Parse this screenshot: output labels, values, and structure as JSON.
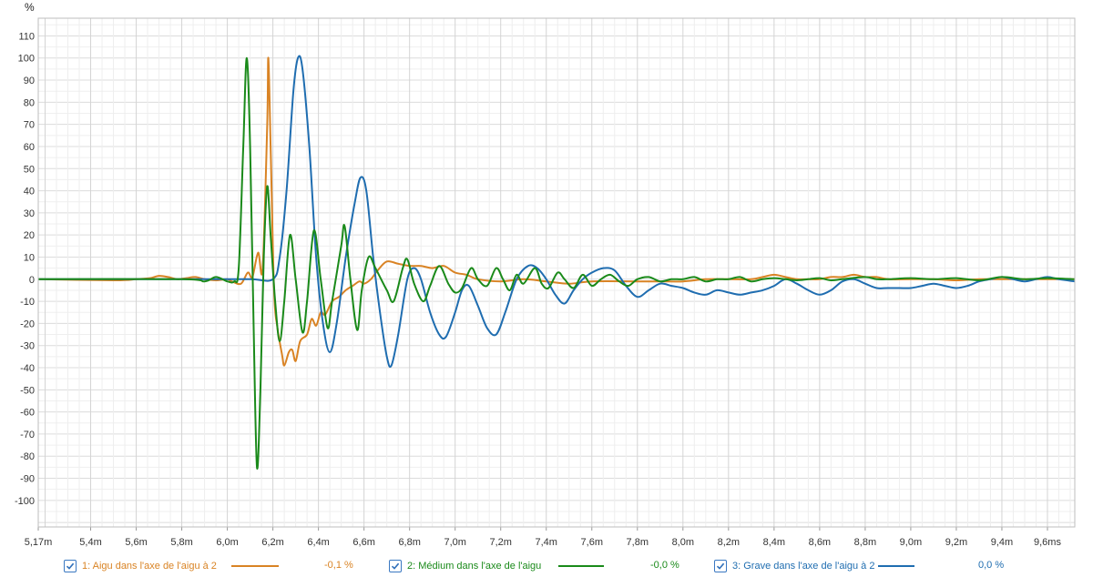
{
  "chart_data": {
    "type": "line",
    "ylabel": "%",
    "xlabel": "",
    "xlim": [
      5.17,
      9.72
    ],
    "ylim": [
      -112,
      118
    ],
    "grid": true,
    "x_ticks": [
      {
        "v": 5.17,
        "label": "5,17m"
      },
      {
        "v": 5.4,
        "label": "5,4m"
      },
      {
        "v": 5.6,
        "label": "5,6m"
      },
      {
        "v": 5.8,
        "label": "5,8m"
      },
      {
        "v": 6.0,
        "label": "6,0m"
      },
      {
        "v": 6.2,
        "label": "6,2m"
      },
      {
        "v": 6.4,
        "label": "6,4m"
      },
      {
        "v": 6.6,
        "label": "6,6m"
      },
      {
        "v": 6.8,
        "label": "6,8m"
      },
      {
        "v": 7.0,
        "label": "7,0m"
      },
      {
        "v": 7.2,
        "label": "7,2m"
      },
      {
        "v": 7.4,
        "label": "7,4m"
      },
      {
        "v": 7.6,
        "label": "7,6m"
      },
      {
        "v": 7.8,
        "label": "7,8m"
      },
      {
        "v": 8.0,
        "label": "8,0m"
      },
      {
        "v": 8.2,
        "label": "8,2m"
      },
      {
        "v": 8.4,
        "label": "8,4m"
      },
      {
        "v": 8.6,
        "label": "8,6m"
      },
      {
        "v": 8.8,
        "label": "8,8m"
      },
      {
        "v": 9.0,
        "label": "9,0m"
      },
      {
        "v": 9.2,
        "label": "9,2m"
      },
      {
        "v": 9.4,
        "label": "9,4m"
      },
      {
        "v": 9.6,
        "label": "9,6ms"
      }
    ],
    "y_ticks": [
      110,
      100,
      90,
      80,
      70,
      60,
      50,
      40,
      30,
      20,
      10,
      0,
      -10,
      -20,
      -30,
      -40,
      -50,
      -60,
      -70,
      -80,
      -90,
      -100
    ],
    "series": [
      {
        "name": "1: Aigu dans l'axe de l'aigu à 2",
        "color": "#d98324",
        "readout": "-0,1 %",
        "points": [
          [
            5.17,
            0
          ],
          [
            5.5,
            -0.5
          ],
          [
            5.6,
            0
          ],
          [
            5.66,
            0.5
          ],
          [
            5.7,
            1.5
          ],
          [
            5.74,
            1
          ],
          [
            5.78,
            0
          ],
          [
            5.82,
            0.5
          ],
          [
            5.86,
            1
          ],
          [
            5.9,
            0
          ],
          [
            5.95,
            -0.5
          ],
          [
            6.0,
            0
          ],
          [
            6.02,
            -1
          ],
          [
            6.06,
            -2
          ],
          [
            6.09,
            3
          ],
          [
            6.11,
            1
          ],
          [
            6.135,
            12
          ],
          [
            6.155,
            5
          ],
          [
            6.175,
            70
          ],
          [
            6.18,
            100
          ],
          [
            6.19,
            60
          ],
          [
            6.205,
            -5
          ],
          [
            6.22,
            -22
          ],
          [
            6.24,
            -34
          ],
          [
            6.25,
            -39
          ],
          [
            6.27,
            -33
          ],
          [
            6.285,
            -32
          ],
          [
            6.3,
            -37
          ],
          [
            6.32,
            -28
          ],
          [
            6.35,
            -25
          ],
          [
            6.37,
            -18
          ],
          [
            6.39,
            -21
          ],
          [
            6.41,
            -15
          ],
          [
            6.43,
            -16
          ],
          [
            6.46,
            -10
          ],
          [
            6.49,
            -8
          ],
          [
            6.52,
            -5
          ],
          [
            6.55,
            -3
          ],
          [
            6.58,
            -1
          ],
          [
            6.6,
            -2
          ],
          [
            6.63,
            0
          ],
          [
            6.66,
            4
          ],
          [
            6.7,
            8
          ],
          [
            6.75,
            7
          ],
          [
            6.8,
            6
          ],
          [
            6.85,
            6
          ],
          [
            6.9,
            5
          ],
          [
            6.95,
            6
          ],
          [
            7.0,
            3
          ],
          [
            7.05,
            2
          ],
          [
            7.1,
            0
          ],
          [
            7.2,
            -1
          ],
          [
            7.3,
            0
          ],
          [
            7.4,
            -1
          ],
          [
            7.5,
            -2
          ],
          [
            7.6,
            -1
          ],
          [
            7.8,
            -1
          ],
          [
            7.9,
            -1
          ],
          [
            8.0,
            -1
          ],
          [
            8.1,
            0
          ],
          [
            8.2,
            0
          ],
          [
            8.3,
            0
          ],
          [
            8.35,
            1
          ],
          [
            8.4,
            2
          ],
          [
            8.45,
            1
          ],
          [
            8.5,
            0
          ],
          [
            8.55,
            0
          ],
          [
            8.6,
            0
          ],
          [
            8.65,
            1
          ],
          [
            8.7,
            1
          ],
          [
            8.75,
            2
          ],
          [
            8.8,
            1
          ],
          [
            8.85,
            1
          ],
          [
            8.9,
            0
          ],
          [
            9.0,
            0
          ],
          [
            9.1,
            0
          ],
          [
            9.2,
            -0.5
          ],
          [
            9.3,
            0
          ],
          [
            9.4,
            0
          ],
          [
            9.5,
            0
          ],
          [
            9.6,
            0
          ],
          [
            9.72,
            0
          ]
        ]
      },
      {
        "name": "2: Médium dans l'axe de l'aigu",
        "color": "#1a8a1a",
        "readout": "-0,0 %",
        "points": [
          [
            5.17,
            0
          ],
          [
            5.8,
            0
          ],
          [
            5.9,
            -1
          ],
          [
            5.95,
            1
          ],
          [
            6.0,
            -1
          ],
          [
            6.03,
            -1
          ],
          [
            6.05,
            5
          ],
          [
            6.07,
            60
          ],
          [
            6.085,
            100
          ],
          [
            6.1,
            60
          ],
          [
            6.115,
            -20
          ],
          [
            6.13,
            -85
          ],
          [
            6.145,
            -50
          ],
          [
            6.16,
            10
          ],
          [
            6.175,
            42
          ],
          [
            6.19,
            20
          ],
          [
            6.21,
            -10
          ],
          [
            6.23,
            -28
          ],
          [
            6.25,
            -10
          ],
          [
            6.275,
            20
          ],
          [
            6.3,
            0
          ],
          [
            6.33,
            -24
          ],
          [
            6.35,
            -10
          ],
          [
            6.38,
            22
          ],
          [
            6.41,
            0
          ],
          [
            6.44,
            -22
          ],
          [
            6.46,
            -10
          ],
          [
            6.5,
            15
          ],
          [
            6.515,
            24
          ],
          [
            6.54,
            0
          ],
          [
            6.57,
            -23
          ],
          [
            6.59,
            -5
          ],
          [
            6.62,
            10
          ],
          [
            6.65,
            5
          ],
          [
            6.7,
            -5
          ],
          [
            6.73,
            -10
          ],
          [
            6.77,
            5
          ],
          [
            6.79,
            9
          ],
          [
            6.82,
            -2
          ],
          [
            6.86,
            -10
          ],
          [
            6.89,
            -3
          ],
          [
            6.93,
            6
          ],
          [
            6.97,
            -2
          ],
          [
            7.0,
            -6
          ],
          [
            7.03,
            -4
          ],
          [
            7.07,
            5
          ],
          [
            7.1,
            0
          ],
          [
            7.14,
            -3
          ],
          [
            7.18,
            5
          ],
          [
            7.21,
            0
          ],
          [
            7.24,
            -5
          ],
          [
            7.27,
            2
          ],
          [
            7.3,
            -2
          ],
          [
            7.35,
            5
          ],
          [
            7.38,
            -2
          ],
          [
            7.41,
            -4
          ],
          [
            7.45,
            3
          ],
          [
            7.48,
            0
          ],
          [
            7.52,
            -4
          ],
          [
            7.56,
            2
          ],
          [
            7.6,
            -3
          ],
          [
            7.64,
            0
          ],
          [
            7.68,
            2
          ],
          [
            7.72,
            -1
          ],
          [
            7.76,
            -3
          ],
          [
            7.8,
            0
          ],
          [
            7.85,
            1
          ],
          [
            7.9,
            -1
          ],
          [
            7.95,
            0
          ],
          [
            8.0,
            0
          ],
          [
            8.05,
            1
          ],
          [
            8.1,
            -1
          ],
          [
            8.15,
            0
          ],
          [
            8.2,
            0
          ],
          [
            8.25,
            1
          ],
          [
            8.3,
            -1
          ],
          [
            8.35,
            0
          ],
          [
            8.4,
            0.5
          ],
          [
            8.45,
            0
          ],
          [
            8.5,
            -0.5
          ],
          [
            8.55,
            0
          ],
          [
            8.6,
            0.5
          ],
          [
            8.65,
            -0.5
          ],
          [
            8.7,
            0
          ],
          [
            8.8,
            1
          ],
          [
            8.85,
            0
          ],
          [
            8.9,
            0
          ],
          [
            9.0,
            0.5
          ],
          [
            9.1,
            0
          ],
          [
            9.2,
            0.5
          ],
          [
            9.3,
            -0.5
          ],
          [
            9.4,
            1
          ],
          [
            9.5,
            0
          ],
          [
            9.6,
            0.5
          ],
          [
            9.72,
            0
          ]
        ]
      },
      {
        "name": "3: Grave dans l'axe de l'aigu à 2",
        "color": "#1f6db0",
        "readout": "0,0 %",
        "points": [
          [
            5.17,
            0
          ],
          [
            5.9,
            0
          ],
          [
            6.1,
            0
          ],
          [
            6.2,
            0
          ],
          [
            6.23,
            10
          ],
          [
            6.26,
            40
          ],
          [
            6.29,
            85
          ],
          [
            6.31,
            100
          ],
          [
            6.33,
            95
          ],
          [
            6.36,
            60
          ],
          [
            6.39,
            10
          ],
          [
            6.42,
            -20
          ],
          [
            6.45,
            -33
          ],
          [
            6.48,
            -20
          ],
          [
            6.52,
            10
          ],
          [
            6.56,
            35
          ],
          [
            6.585,
            46
          ],
          [
            6.61,
            40
          ],
          [
            6.64,
            10
          ],
          [
            6.67,
            -15
          ],
          [
            6.7,
            -35
          ],
          [
            6.72,
            -39
          ],
          [
            6.75,
            -25
          ],
          [
            6.79,
            0
          ],
          [
            6.82,
            5
          ],
          [
            6.85,
            0
          ],
          [
            6.89,
            -15
          ],
          [
            6.93,
            -25
          ],
          [
            6.96,
            -26
          ],
          [
            7.0,
            -15
          ],
          [
            7.03,
            -5
          ],
          [
            7.06,
            -3
          ],
          [
            7.1,
            -12
          ],
          [
            7.14,
            -22
          ],
          [
            7.18,
            -25
          ],
          [
            7.22,
            -15
          ],
          [
            7.27,
            0
          ],
          [
            7.32,
            6
          ],
          [
            7.36,
            5
          ],
          [
            7.4,
            0
          ],
          [
            7.44,
            -7
          ],
          [
            7.48,
            -11
          ],
          [
            7.52,
            -5
          ],
          [
            7.56,
            0
          ],
          [
            7.6,
            3
          ],
          [
            7.65,
            5
          ],
          [
            7.7,
            4
          ],
          [
            7.75,
            -3
          ],
          [
            7.8,
            -8
          ],
          [
            7.85,
            -5
          ],
          [
            7.9,
            -2
          ],
          [
            7.95,
            -3
          ],
          [
            8.0,
            -4
          ],
          [
            8.05,
            -6
          ],
          [
            8.1,
            -7
          ],
          [
            8.15,
            -5
          ],
          [
            8.2,
            -6
          ],
          [
            8.25,
            -7
          ],
          [
            8.3,
            -6
          ],
          [
            8.35,
            -5
          ],
          [
            8.4,
            -3
          ],
          [
            8.45,
            0
          ],
          [
            8.5,
            -2
          ],
          [
            8.55,
            -5
          ],
          [
            8.6,
            -7
          ],
          [
            8.65,
            -5
          ],
          [
            8.7,
            -1
          ],
          [
            8.75,
            0
          ],
          [
            8.8,
            -2
          ],
          [
            8.85,
            -4
          ],
          [
            8.9,
            -4
          ],
          [
            8.95,
            -4
          ],
          [
            9.0,
            -4
          ],
          [
            9.05,
            -3
          ],
          [
            9.1,
            -2
          ],
          [
            9.15,
            -3
          ],
          [
            9.2,
            -4
          ],
          [
            9.25,
            -3
          ],
          [
            9.3,
            -1
          ],
          [
            9.35,
            0
          ],
          [
            9.4,
            1
          ],
          [
            9.45,
            0
          ],
          [
            9.5,
            -1
          ],
          [
            9.55,
            0
          ],
          [
            9.6,
            1
          ],
          [
            9.65,
            0
          ],
          [
            9.72,
            -1
          ]
        ]
      }
    ]
  },
  "legend": [
    {
      "label": "1: Aigu dans l'axe de l'aigu à 2",
      "readout": "-0,1 %",
      "color": "#d98324"
    },
    {
      "label": "2: Médium dans l'axe de l'aigu",
      "readout": "-0,0 %",
      "color": "#1a8a1a"
    },
    {
      "label": "3: Grave dans l'axe de l'aigu à 2",
      "readout": "0,0 %",
      "color": "#1f6db0"
    }
  ]
}
